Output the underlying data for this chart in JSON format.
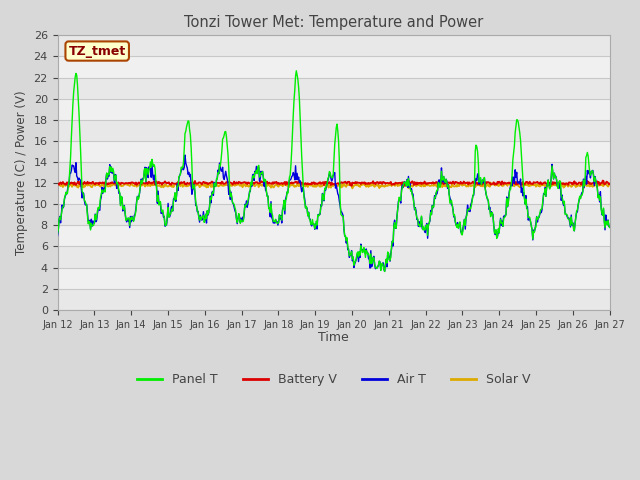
{
  "title": "Tonzi Tower Met: Temperature and Power",
  "xlabel": "Time",
  "ylabel": "Temperature (C) / Power (V)",
  "ylim": [
    0,
    26
  ],
  "yticks": [
    0,
    2,
    4,
    6,
    8,
    10,
    12,
    14,
    16,
    18,
    20,
    22,
    24,
    26
  ],
  "xtick_labels": [
    "Jan 12",
    "Jan 13",
    "Jan 14",
    "Jan 15",
    "Jan 16",
    "Jan 17",
    "Jan 18",
    "Jan 19",
    "Jan 20",
    "Jan 21",
    "Jan 22",
    "Jan 23",
    "Jan 24",
    "Jan 25",
    "Jan 26",
    "Jan 27"
  ],
  "annotation_text": "TZ_tmet",
  "panel_T_color": "#00ee00",
  "battery_V_color": "#dd0000",
  "air_T_color": "#0000dd",
  "solar_V_color": "#ddaa00",
  "bg_color": "#d8d8d8",
  "plot_bg_color": "#f0f0f0",
  "stripe_color": "#e8e8e8",
  "grid_color": "#c8c8c8",
  "legend_labels": [
    "Panel T",
    "Battery V",
    "Air T",
    "Solar V"
  ]
}
